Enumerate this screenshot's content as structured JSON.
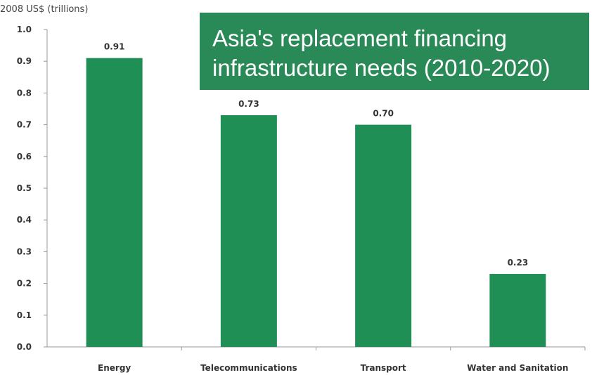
{
  "chart_data": {
    "type": "bar",
    "title_lines": [
      "Asia's replacement financing",
      "infrastructure needs (2010-2020)"
    ],
    "ylabel": "2008 US$ (trillions)",
    "categories": [
      "Energy",
      "Telecommunications",
      "Transport",
      "Water and Sanitation"
    ],
    "values": [
      0.91,
      0.73,
      0.7,
      0.23
    ],
    "value_labels": [
      "0.91",
      "0.73",
      "0.70",
      "0.23"
    ],
    "ylim": [
      0,
      1.0
    ],
    "yticks": [
      "0.0",
      "0.1",
      "0.2",
      "0.3",
      "0.4",
      "0.5",
      "0.6",
      "0.7",
      "0.8",
      "0.9",
      "1.0"
    ],
    "grid": false,
    "bar_color": "#1f8f55",
    "title_bg_color": "#2a8a57"
  }
}
